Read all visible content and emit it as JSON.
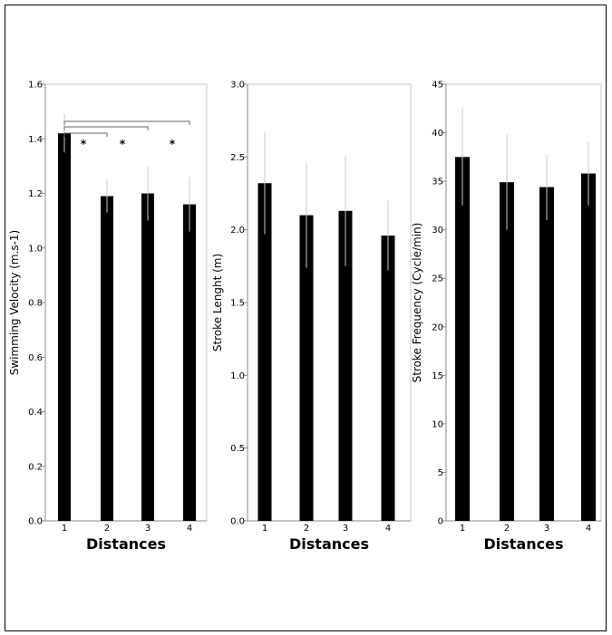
{
  "chart_data": [
    {
      "type": "bar",
      "categories": [
        "1",
        "2",
        "3",
        "4"
      ],
      "values": [
        1.42,
        1.19,
        1.2,
        1.16
      ],
      "errors": [
        0.07,
        0.06,
        0.1,
        0.1
      ],
      "ylabel": "Swimming Velocity  (m.s-1)",
      "xlabel": "Distances",
      "ylim": [
        0,
        1.6
      ],
      "yticks": [
        "0.0",
        "0.2",
        "0.4",
        "0.6",
        "0.8",
        "1.0",
        "1.2",
        "1.4",
        "1.6"
      ],
      "bar_color": "#000000",
      "error_color": "#c8c8c8",
      "significance": {
        "brackets": [
          [
            1,
            2
          ],
          [
            1,
            3
          ],
          [
            1,
            4
          ]
        ],
        "marks": [
          "*",
          "*",
          "*"
        ]
      }
    },
    {
      "type": "bar",
      "categories": [
        "1",
        "2",
        "3",
        "4"
      ],
      "values": [
        2.32,
        2.1,
        2.13,
        1.96
      ],
      "errors": [
        0.35,
        0.36,
        0.38,
        0.24
      ],
      "ylabel": "Stroke Lenght (m)",
      "xlabel": "Distances",
      "ylim": [
        0,
        3.0
      ],
      "yticks": [
        "0.0",
        "0.5",
        "1.0",
        "1.5",
        "2.0",
        "2.5",
        "3.0"
      ],
      "bar_color": "#000000",
      "error_color": "#c8c8c8"
    },
    {
      "type": "bar",
      "categories": [
        "1",
        "2",
        "3",
        "4"
      ],
      "values": [
        37.5,
        34.9,
        34.4,
        35.8
      ],
      "errors": [
        5.0,
        4.9,
        3.4,
        3.3
      ],
      "ylabel": "Stroke Frequency  (Cycle/min)",
      "xlabel": "Distances",
      "ylim": [
        0,
        45
      ],
      "yticks": [
        "0",
        "5",
        "10",
        "15",
        "20",
        "25",
        "30",
        "35",
        "40",
        "45"
      ],
      "bar_color": "#000000",
      "error_color": "#c8c8c8"
    }
  ]
}
